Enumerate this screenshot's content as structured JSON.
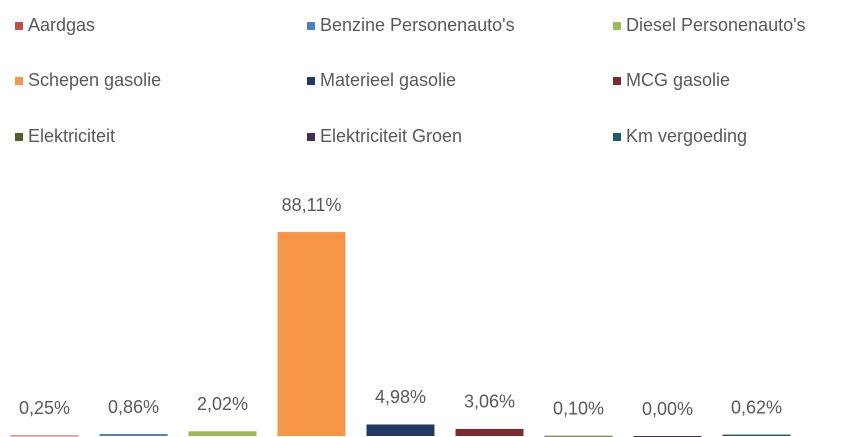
{
  "chart_data": {
    "type": "bar",
    "series": [
      {
        "name": "Aardgas",
        "color": "#c0504d",
        "values": [
          0.25
        ],
        "value_labels": [
          "0,25%"
        ]
      },
      {
        "name": "Benzine Personenauto's",
        "color": "#4f81bd",
        "values": [
          0.86
        ],
        "value_labels": [
          "0,86%"
        ]
      },
      {
        "name": "Diesel Personenauto's",
        "color": "#9bbb59",
        "values": [
          2.02
        ],
        "value_labels": [
          "2,02%"
        ]
      },
      {
        "name": "Schepen gasolie",
        "color": "#f79646",
        "values": [
          88.11
        ],
        "value_labels": [
          "88,11%"
        ]
      },
      {
        "name": "Materieel gasolie",
        "color": "#1f3864",
        "values": [
          4.98
        ],
        "value_labels": [
          "4,98%"
        ]
      },
      {
        "name": "MCG gasolie",
        "color": "#7b2c2c",
        "values": [
          3.06
        ],
        "value_labels": [
          "3,06%"
        ]
      },
      {
        "name": "Elektriciteit",
        "color": "#4f6228",
        "values": [
          0.1
        ],
        "value_labels": [
          "0,10%"
        ]
      },
      {
        "name": "Elektriciteit Groen",
        "color": "#403152",
        "values": [
          0.0
        ],
        "value_labels": [
          "0,00%"
        ]
      },
      {
        "name": "Km vergoeding",
        "color": "#215968",
        "values": [
          0.62
        ],
        "value_labels": [
          "0,62%"
        ]
      }
    ],
    "ylim": [
      0,
      100
    ],
    "legend": "top"
  }
}
